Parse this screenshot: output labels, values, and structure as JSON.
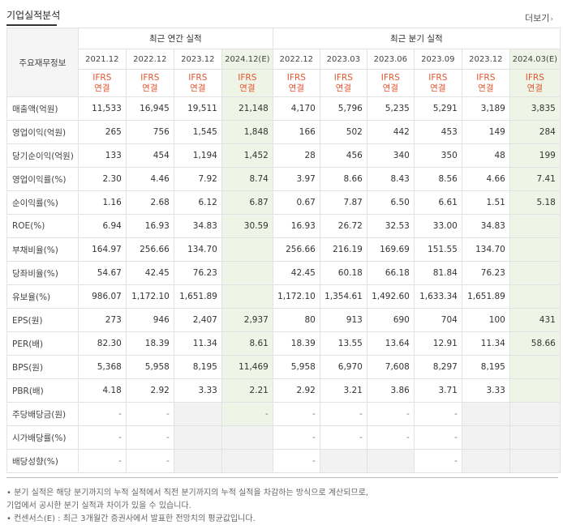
{
  "header": {
    "title": "기업실적분석",
    "more_label": "더보기",
    "more_arrow": "›"
  },
  "table": {
    "corner_label": "주요재무정보",
    "annual_group_label": "최근 연간 실적",
    "quarter_group_label": "최근 분기 실적",
    "periods": [
      "2021.12",
      "2022.12",
      "2023.12",
      "2024.12(E)",
      "2022.12",
      "2023.03",
      "2023.06",
      "2023.09",
      "2023.12",
      "2024.03(E)"
    ],
    "ifrs_line1": "IFRS",
    "ifrs_line2": "연결",
    "rows": [
      {
        "label": "매출액(억원)",
        "values": [
          "11,533",
          "16,945",
          "19,511",
          "21,148",
          "4,170",
          "5,796",
          "5,235",
          "5,291",
          "3,189",
          "3,835"
        ]
      },
      {
        "label": "영업이익(억원)",
        "values": [
          "265",
          "756",
          "1,545",
          "1,848",
          "166",
          "502",
          "442",
          "453",
          "149",
          "284"
        ]
      },
      {
        "label": "당기순이익(억원)",
        "values": [
          "133",
          "454",
          "1,194",
          "1,452",
          "28",
          "456",
          "340",
          "350",
          "48",
          "199"
        ]
      },
      {
        "label": "영업이익률(%)",
        "values": [
          "2.30",
          "4.46",
          "7.92",
          "8.74",
          "3.97",
          "8.66",
          "8.43",
          "8.56",
          "4.66",
          "7.41"
        ]
      },
      {
        "label": "순이익률(%)",
        "values": [
          "1.16",
          "2.68",
          "6.12",
          "6.87",
          "0.67",
          "7.87",
          "6.50",
          "6.61",
          "1.51",
          "5.18"
        ]
      },
      {
        "label": "ROE(%)",
        "values": [
          "6.94",
          "16.93",
          "34.83",
          "30.59",
          "16.93",
          "26.72",
          "32.53",
          "33.00",
          "34.83",
          ""
        ]
      },
      {
        "label": "부채비율(%)",
        "values": [
          "164.97",
          "256.66",
          "134.70",
          "",
          "256.66",
          "216.19",
          "169.69",
          "151.55",
          "134.70",
          ""
        ]
      },
      {
        "label": "당좌비율(%)",
        "values": [
          "54.67",
          "42.45",
          "76.23",
          "",
          "42.45",
          "60.18",
          "66.18",
          "81.84",
          "76.23",
          ""
        ]
      },
      {
        "label": "유보율(%)",
        "values": [
          "986.07",
          "1,172.10",
          "1,651.89",
          "",
          "1,172.10",
          "1,354.61",
          "1,492.60",
          "1,633.34",
          "1,651.89",
          ""
        ]
      },
      {
        "label": "EPS(원)",
        "values": [
          "273",
          "946",
          "2,407",
          "2,937",
          "80",
          "913",
          "690",
          "704",
          "100",
          "431"
        ]
      },
      {
        "label": "PER(배)",
        "values": [
          "82.30",
          "18.39",
          "11.34",
          "8.61",
          "18.39",
          "13.55",
          "13.64",
          "12.91",
          "11.34",
          "58.66"
        ]
      },
      {
        "label": "BPS(원)",
        "values": [
          "5,368",
          "5,958",
          "8,195",
          "11,469",
          "5,958",
          "6,970",
          "7,608",
          "8,297",
          "8,195",
          ""
        ]
      },
      {
        "label": "PBR(배)",
        "values": [
          "4.18",
          "2.92",
          "3.33",
          "2.21",
          "2.92",
          "3.21",
          "3.86",
          "3.71",
          "3.33",
          ""
        ]
      },
      {
        "label": "주당배당금(원)",
        "values": [
          "-",
          "-",
          "",
          "-",
          "-",
          "-",
          "-",
          "-",
          "",
          ""
        ]
      },
      {
        "label": "시가배당률(%)",
        "values": [
          "-",
          "-",
          "",
          "",
          "-",
          "-",
          "-",
          "-",
          "",
          ""
        ]
      },
      {
        "label": "배당성향(%)",
        "values": [
          "-",
          "-",
          "",
          "",
          "-",
          "",
          "",
          "-",
          "",
          ""
        ]
      }
    ]
  },
  "notes": [
    "• 분기 실적은 해당 분기까지의 누적 실적에서 직전 분기까지의 누적 실적을 차감하는 방식으로 계산되므로,",
    "   기업에서 공시한 분기 실적과 차이가 있을 수 있습니다.",
    "• 컨센서스(E) : 최근 3개월간 증권사에서 발표한 전망치의 평균값입니다."
  ]
}
